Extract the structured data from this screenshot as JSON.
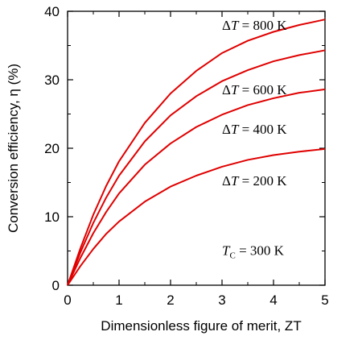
{
  "chart_data": {
    "type": "line",
    "title": "",
    "xlabel": "Dimensionless figure of merit, ZT",
    "ylabel": "Conversion efficiency, η (%)",
    "xlim": [
      0,
      5
    ],
    "ylim": [
      0,
      40
    ],
    "xticks": [
      "0",
      "1",
      "2",
      "3",
      "4",
      "5"
    ],
    "yticks": [
      "0",
      "10",
      "20",
      "30",
      "40"
    ],
    "grid": false,
    "legend": "none",
    "line_color": "#e00000",
    "x": [
      0,
      0.25,
      0.5,
      0.75,
      1,
      1.5,
      2,
      2.5,
      3,
      3.5,
      4,
      4.5,
      5
    ],
    "series": [
      {
        "name": "ΔT = 800 K",
        "values": [
          0,
          5.4,
          10.3,
          14.5,
          18.1,
          23.7,
          28.0,
          31.3,
          33.9,
          35.7,
          37.0,
          38.0,
          38.8
        ]
      },
      {
        "name": "ΔT = 600 K",
        "values": [
          0,
          4.8,
          9.1,
          12.8,
          16.0,
          21.0,
          24.8,
          27.6,
          29.8,
          31.4,
          32.7,
          33.6,
          34.3
        ]
      },
      {
        "name": "ΔT = 400 K",
        "values": [
          0,
          4.0,
          7.6,
          10.7,
          13.4,
          17.6,
          20.7,
          23.1,
          24.9,
          26.3,
          27.3,
          28.1,
          28.6
        ]
      },
      {
        "name": "ΔT = 200 K",
        "values": [
          0,
          2.8,
          5.3,
          7.5,
          9.3,
          12.2,
          14.4,
          16.0,
          17.3,
          18.3,
          19.0,
          19.5,
          19.9
        ]
      }
    ],
    "annotations": [
      {
        "text": "ΔT = 800 K",
        "symbol": "Δ",
        "var": "T",
        "rest": " = 800 K",
        "x": 3.0,
        "y": 37.3
      },
      {
        "text": "ΔT = 600 K",
        "symbol": "Δ",
        "var": "T",
        "rest": " = 600 K",
        "x": 3.0,
        "y": 27.9
      },
      {
        "text": "ΔT = 400 K",
        "symbol": "Δ",
        "var": "T",
        "rest": " = 400 K",
        "x": 3.0,
        "y": 22.1
      },
      {
        "text": "ΔT = 200 K",
        "symbol": "Δ",
        "var": "T",
        "rest": " = 200 K",
        "x": 3.0,
        "y": 14.6
      },
      {
        "text": "TC = 300 K",
        "symbol": "",
        "var": "T",
        "sub": "C",
        "rest": " = 300 K",
        "x": 3.0,
        "y": 4.4
      }
    ]
  }
}
